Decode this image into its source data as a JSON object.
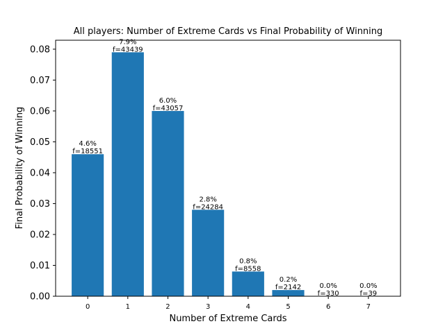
{
  "chart_data": {
    "type": "bar",
    "title": "All players: Number of Extreme Cards vs Final Probability of Winning",
    "xlabel": "Number of Extreme Cards",
    "ylabel": "Final Probability of Winning",
    "categories": [
      "0",
      "1",
      "2",
      "3",
      "4",
      "5",
      "6",
      "7"
    ],
    "values": [
      0.046,
      0.079,
      0.06,
      0.028,
      0.008,
      0.002,
      0.0,
      0.0
    ],
    "pct_labels": [
      "4.6%",
      "7.9%",
      "6.0%",
      "2.8%",
      "0.8%",
      "0.2%",
      "0.0%",
      "0.0%"
    ],
    "freq_labels": [
      "f=18551",
      "f=43439",
      "f=43057",
      "f=24284",
      "f=8558",
      "f=2142",
      "f=330",
      "f=39"
    ],
    "yticks": [
      "0.00",
      "0.01",
      "0.02",
      "0.03",
      "0.04",
      "0.05",
      "0.06",
      "0.07",
      "0.08"
    ],
    "ylim": [
      0,
      0.0829
    ],
    "bar_color": "#1f77b4",
    "grid": false,
    "legend": "none"
  }
}
